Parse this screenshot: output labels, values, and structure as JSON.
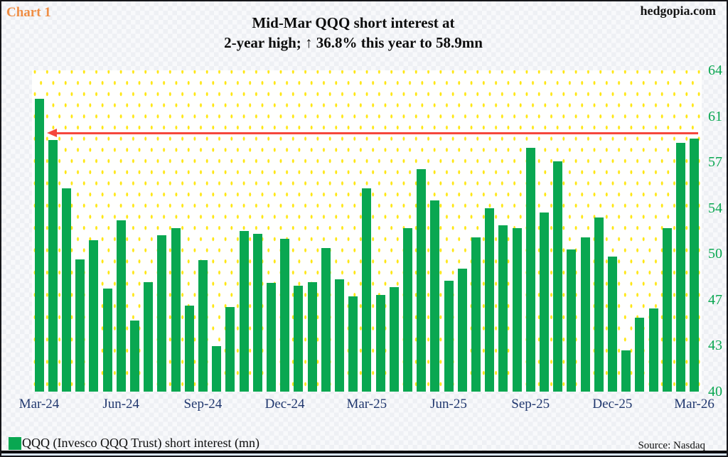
{
  "header": {
    "chart_label": "Chart 1",
    "site": "hedgopia.com",
    "title_line1": "Mid-Mar QQQ short interest at",
    "title_line2": "2-year high; ↑ 36.8% this year to 58.9mn"
  },
  "footer": {
    "legend_label": "QQQ (Invesco QQQ Trust) short interest (mn)",
    "source": "Source: Nasdaq"
  },
  "colors": {
    "bar": "#09a751",
    "y_tick": "#09a751",
    "x_tick": "#21386f",
    "reference_line": "#f5473c",
    "chart_label": "#ef8e45",
    "plot_dot": "#ffe713"
  },
  "chart_data": {
    "type": "bar",
    "title": "Mid-Mar QQQ short interest at 2-year high; ↑ 36.8% this year to 58.9mn",
    "series_name": "QQQ (Invesco QQQ Trust) short interest (mn)",
    "unit": "mn shares",
    "categories": [
      "Mid-Mar-24",
      "End-Mar-24",
      "Mid-Apr-24",
      "End-Apr-24",
      "Mid-May-24",
      "End-May-24",
      "Mid-Jun-24",
      "End-Jun-24",
      "Mid-Jul-24",
      "End-Jul-24",
      "Mid-Aug-24",
      "End-Aug-24",
      "Mid-Sep-24",
      "End-Sep-24",
      "Mid-Oct-24",
      "End-Oct-24",
      "Mid-Nov-24",
      "End-Nov-24",
      "Mid-Dec-24",
      "End-Dec-24",
      "Mid-Jan-25",
      "End-Jan-25",
      "Mid-Feb-25",
      "End-Feb-25",
      "Mid-Mar-25",
      "End-Mar-25",
      "Mid-Apr-25",
      "End-Apr-25",
      "Mid-May-25",
      "End-May-25",
      "Mid-Jun-25",
      "End-Jun-25",
      "Mid-Jul-25",
      "End-Jul-25",
      "Mid-Aug-25",
      "End-Aug-25",
      "Mid-Sep-25",
      "End-Sep-25",
      "Mid-Oct-25",
      "End-Oct-25",
      "Mid-Nov-25",
      "End-Nov-25",
      "Mid-Dec-25",
      "End-Dec-25",
      "Mid-Jan-26",
      "End-Jan-26",
      "Mid-Feb-26",
      "End-Feb-26",
      "Mid-Mar-26"
    ],
    "values": [
      61.9,
      58.8,
      55.2,
      49.9,
      51.3,
      47.7,
      52.8,
      45.3,
      48.2,
      51.7,
      52.2,
      46.4,
      49.8,
      43.4,
      46.3,
      52.0,
      51.8,
      48.1,
      51.4,
      47.9,
      48.2,
      50.7,
      48.4,
      47.1,
      55.2,
      47.2,
      47.8,
      52.2,
      56.6,
      54.3,
      48.3,
      49.2,
      51.5,
      53.7,
      52.4,
      52.2,
      58.2,
      53.4,
      57.2,
      50.6,
      51.5,
      53.0,
      50.1,
      43.1,
      45.5,
      46.2,
      52.2,
      58.6,
      58.9
    ],
    "x_tick_labels": [
      "Mar-24",
      "Jun-24",
      "Sep-24",
      "Dec-24",
      "Mar-25",
      "Jun-25",
      "Sep-25",
      "Dec-25",
      "Mar-26"
    ],
    "x_tick_indices": [
      0,
      6,
      12,
      18,
      24,
      30,
      36,
      42,
      48
    ],
    "y_tick_labels": [
      "40",
      "43",
      "47",
      "50",
      "54",
      "57",
      "61",
      "64"
    ],
    "y_axis": {
      "min": 40,
      "max": 64,
      "side": "right"
    },
    "reference_line": {
      "value": 58.9,
      "style": "horizontal-arrow-left",
      "note": "current level = 2-year high"
    },
    "grid": "yellow dotted pattern fill",
    "legend_position": "bottom-left"
  }
}
